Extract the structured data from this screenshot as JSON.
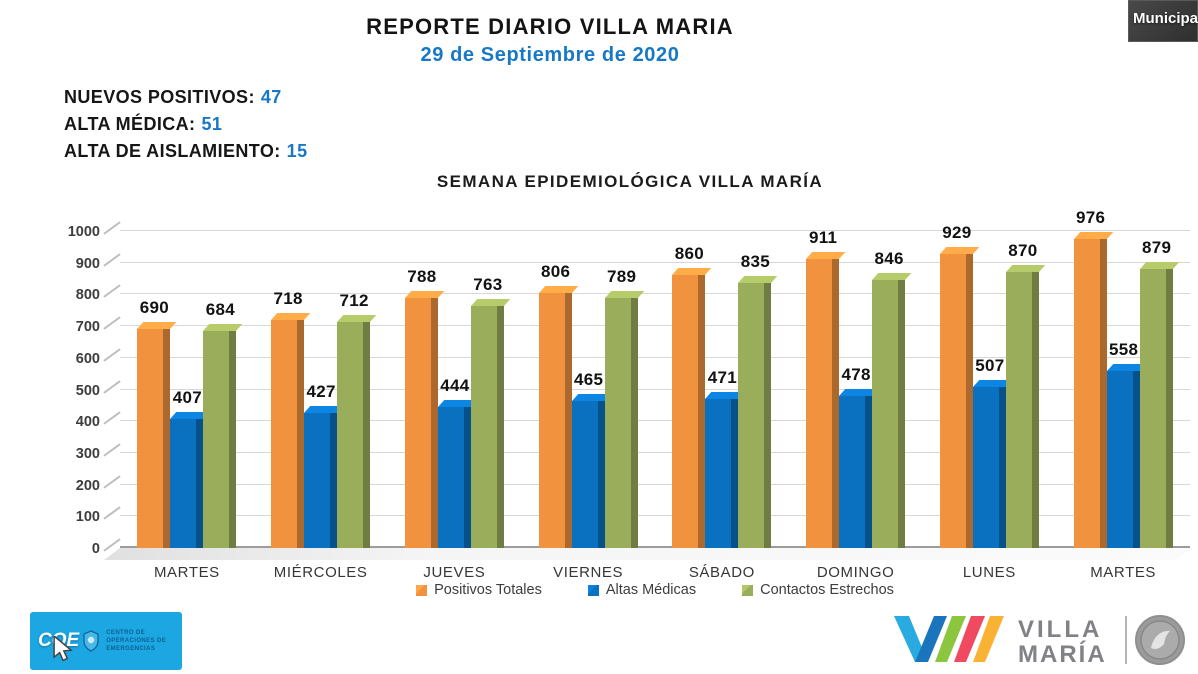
{
  "video_overlay": {
    "label": "Municipa"
  },
  "header": {
    "title": "REPORTE DIARIO VILLA MARIA",
    "date": "29 de Septiembre de 2020"
  },
  "stats": [
    {
      "label": "NUEVOS POSITIVOS:",
      "value": "47"
    },
    {
      "label": "ALTA MÉDICA:",
      "value": "51"
    },
    {
      "label": "ALTA DE AISLAMIENTO:",
      "value": "15"
    }
  ],
  "colors": {
    "accent_blue": "#1878C8",
    "coe_background": "#1CA7E2"
  },
  "chart_data": {
    "type": "bar",
    "title": "SEMANA EPIDEMIOLÓGICA VILLA MARÍA",
    "categories": [
      "MARTES",
      "MIÉRCOLES",
      "JUEVES",
      "VIERNES",
      "SÁBADO",
      "DOMINGO",
      "LUNES",
      "MARTES"
    ],
    "series": [
      {
        "name": "Positivos Totales",
        "color": "#F0923E",
        "values": [
          690,
          718,
          788,
          806,
          860,
          911,
          929,
          976
        ]
      },
      {
        "name": "Altas Médicas",
        "color": "#0A71C0",
        "values": [
          407,
          427,
          444,
          465,
          471,
          478,
          507,
          558
        ]
      },
      {
        "name": "Contactos Estrechos",
        "color": "#9AAD5B",
        "values": [
          684,
          712,
          763,
          789,
          835,
          846,
          870,
          879
        ]
      }
    ],
    "xlabel": "",
    "ylabel": "",
    "ylim": [
      0,
      1000
    ],
    "ytick_step": 100,
    "grid": true,
    "legend_position": "bottom",
    "style": "3d-clustered-column"
  },
  "footer": {
    "coe": {
      "acronym": "COE",
      "name_lines": [
        "CENTRO DE",
        "OPERACIONES DE",
        "EMERGENCIAS"
      ]
    },
    "villa_maria": {
      "line1": "VILLA",
      "line2": "MARÍA"
    }
  }
}
